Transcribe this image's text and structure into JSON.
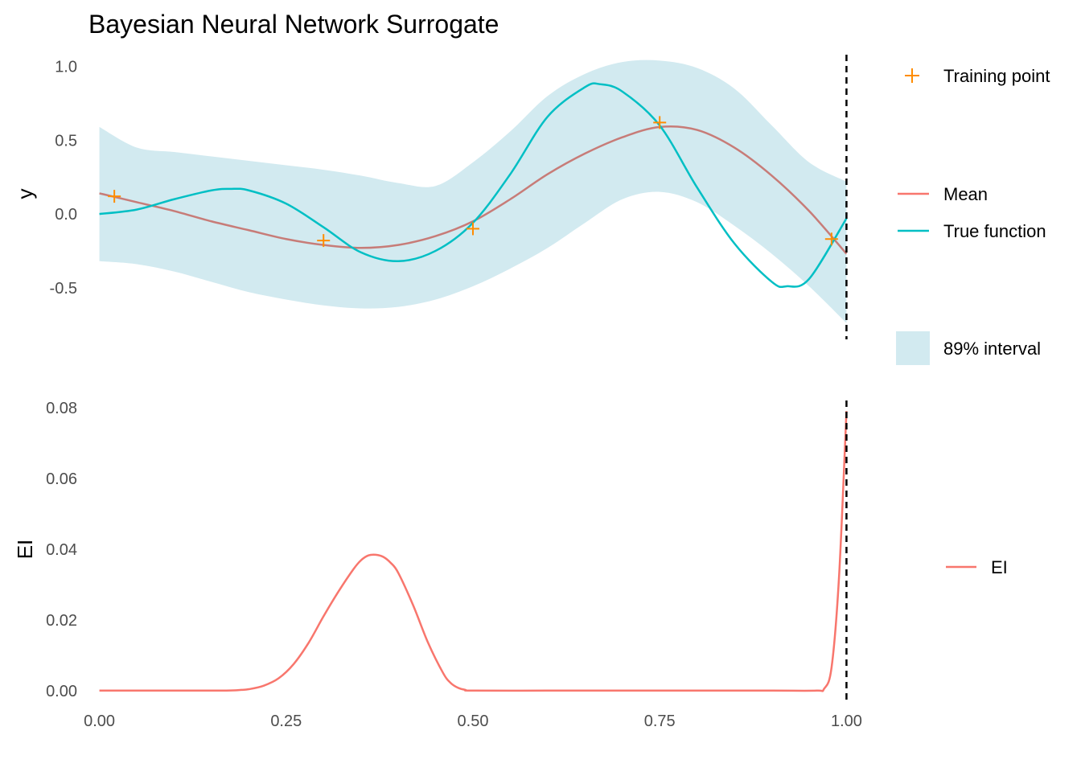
{
  "chart_data": [
    {
      "type": "line",
      "title": "Bayesian Neural Network Surrogate",
      "xlabel": "",
      "ylabel": "y",
      "xlim": [
        -0.02,
        1.02
      ],
      "ylim": [
        -0.85,
        1.08
      ],
      "x_ticks": [
        0.0,
        0.25,
        0.5,
        0.75,
        1.0
      ],
      "y_ticks": [
        -0.5,
        0.0,
        0.5,
        1.0
      ],
      "y_tick_labels": [
        "-0.5",
        "0.0",
        "0.5",
        "1.0"
      ],
      "grid": false,
      "legend_position": "right",
      "vline_x": 1.0,
      "colors": {
        "mean": "#C77C78",
        "true_function": "#00BFC4",
        "interval": "#D2EAF0",
        "training_point": "#FF8C00",
        "vline": "#000000"
      },
      "interval": {
        "name": "89% interval",
        "x": [
          0.0,
          0.05,
          0.1,
          0.15,
          0.2,
          0.25,
          0.3,
          0.35,
          0.4,
          0.45,
          0.5,
          0.55,
          0.6,
          0.65,
          0.7,
          0.75,
          0.8,
          0.85,
          0.9,
          0.95,
          1.0
        ],
        "upper": [
          0.59,
          0.45,
          0.42,
          0.39,
          0.36,
          0.33,
          0.3,
          0.26,
          0.21,
          0.19,
          0.35,
          0.56,
          0.8,
          0.95,
          1.03,
          1.04,
          0.99,
          0.85,
          0.6,
          0.35,
          0.22
        ],
        "lower": [
          -0.32,
          -0.34,
          -0.39,
          -0.46,
          -0.53,
          -0.58,
          -0.62,
          -0.64,
          -0.63,
          -0.58,
          -0.49,
          -0.37,
          -0.23,
          -0.06,
          0.1,
          0.15,
          0.08,
          -0.08,
          -0.27,
          -0.49,
          -0.74
        ]
      },
      "series": [
        {
          "name": "Mean",
          "x": [
            0.0,
            0.05,
            0.1,
            0.15,
            0.2,
            0.25,
            0.3,
            0.35,
            0.4,
            0.45,
            0.5,
            0.55,
            0.6,
            0.65,
            0.7,
            0.75,
            0.8,
            0.85,
            0.9,
            0.95,
            1.0
          ],
          "values": [
            0.14,
            0.08,
            0.02,
            -0.05,
            -0.11,
            -0.17,
            -0.21,
            -0.23,
            -0.21,
            -0.15,
            -0.05,
            0.1,
            0.27,
            0.41,
            0.52,
            0.59,
            0.57,
            0.45,
            0.26,
            0.02,
            -0.27
          ]
        },
        {
          "name": "True function",
          "x": [
            0.0,
            0.05,
            0.1,
            0.15,
            0.175,
            0.2,
            0.25,
            0.3,
            0.35,
            0.4,
            0.45,
            0.5,
            0.55,
            0.6,
            0.65,
            0.67,
            0.7,
            0.75,
            0.8,
            0.85,
            0.9,
            0.92,
            0.95,
            1.0
          ],
          "values": [
            0.0,
            0.03,
            0.1,
            0.16,
            0.17,
            0.16,
            0.07,
            -0.09,
            -0.26,
            -0.32,
            -0.25,
            -0.06,
            0.27,
            0.66,
            0.86,
            0.88,
            0.83,
            0.6,
            0.18,
            -0.2,
            -0.46,
            -0.49,
            -0.44,
            -0.03
          ]
        }
      ],
      "training_points": {
        "name": "Training point",
        "x": [
          0.02,
          0.3,
          0.5,
          0.75,
          0.98
        ],
        "y": [
          0.12,
          -0.18,
          -0.1,
          0.62,
          -0.17
        ]
      }
    },
    {
      "type": "line",
      "xlabel": "",
      "ylabel": "EI",
      "xlim": [
        -0.02,
        1.02
      ],
      "ylim": [
        -0.003,
        0.082
      ],
      "x_ticks": [
        0.0,
        0.25,
        0.5,
        0.75,
        1.0
      ],
      "x_tick_labels": [
        "0.00",
        "0.25",
        "0.50",
        "0.75",
        "1.00"
      ],
      "y_ticks": [
        0.0,
        0.02,
        0.04,
        0.06,
        0.08
      ],
      "y_tick_labels": [
        "0.00",
        "0.02",
        "0.04",
        "0.06",
        "0.08"
      ],
      "grid": false,
      "legend_position": "right",
      "vline_x": 1.0,
      "colors": {
        "ei": "#F8766D",
        "vline": "#000000"
      },
      "series": [
        {
          "name": "EI",
          "x": [
            0.0,
            0.1,
            0.17,
            0.19,
            0.2,
            0.22,
            0.24,
            0.26,
            0.28,
            0.3,
            0.32,
            0.34,
            0.35,
            0.36,
            0.37,
            0.38,
            0.39,
            0.4,
            0.42,
            0.44,
            0.46,
            0.47,
            0.48,
            0.49,
            0.5,
            0.6,
            0.7,
            0.8,
            0.9,
            0.96,
            0.97,
            0.98,
            0.99,
            1.0
          ],
          "values": [
            0.0,
            0.0,
            0.0,
            0.0002,
            0.0004,
            0.0014,
            0.0035,
            0.0075,
            0.0135,
            0.021,
            0.028,
            0.0343,
            0.0368,
            0.0382,
            0.0384,
            0.0378,
            0.0361,
            0.0333,
            0.0241,
            0.0135,
            0.005,
            0.0022,
            0.0008,
            0.0002,
            0.0,
            0.0,
            0.0,
            0.0,
            0.0,
            0.0,
            0.0005,
            0.0065,
            0.032,
            0.079
          ]
        }
      ]
    }
  ]
}
